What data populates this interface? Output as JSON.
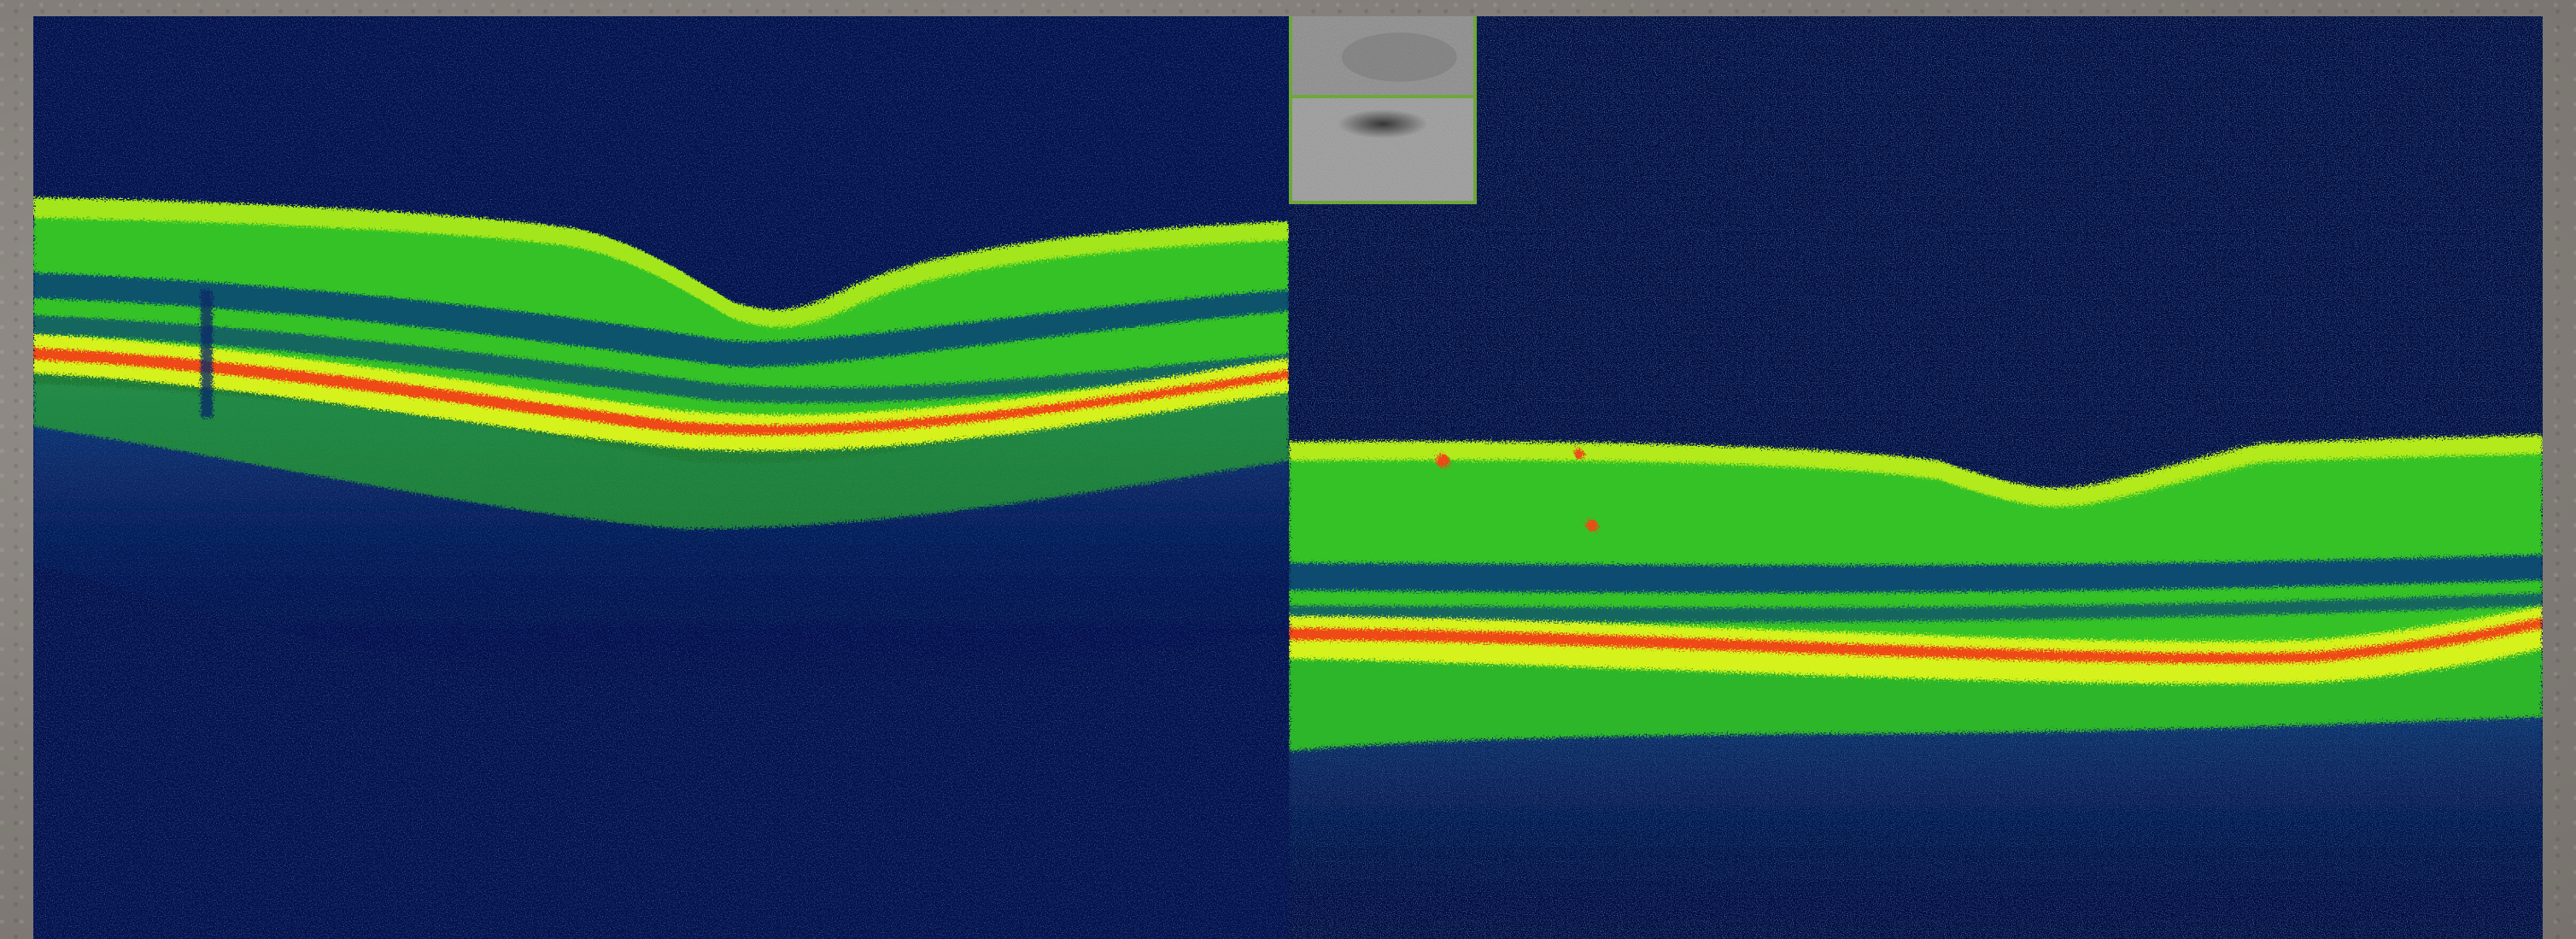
{
  "image": {
    "description_free": true,
    "colors": {
      "background": "#04104a",
      "noise": "#1b4c8f",
      "retina_green": "#3ad12a",
      "retina_yellow": "#c8f018",
      "rpe_red": "#f04a10",
      "frame": "#8a8580",
      "thumb_border": "#6ea83a"
    },
    "panels": [
      {
        "name": "left-oct-scan"
      },
      {
        "name": "right-oct-scan"
      }
    ],
    "thumbnails": [
      {
        "name": "fundus-thumbnail-top"
      },
      {
        "name": "fundus-thumbnail-bottom"
      }
    ]
  }
}
